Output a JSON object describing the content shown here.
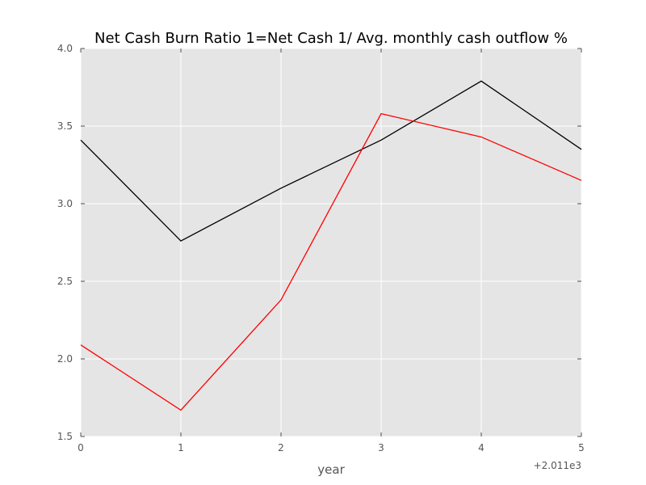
{
  "chart_data": {
    "type": "line",
    "title": "Net Cash Burn Ratio 1=Net Cash 1/ Avg. monthly cash outflow %",
    "xlabel": "year",
    "ylabel": "",
    "x_offset_label": "+2.011e3",
    "x": [
      0,
      1,
      2,
      3,
      4,
      5
    ],
    "xlim": [
      0,
      5
    ],
    "ylim": [
      1.5,
      4.0
    ],
    "x_ticks": [
      "0",
      "1",
      "2",
      "3",
      "4",
      "5"
    ],
    "y_ticks": [
      "1.5",
      "2.0",
      "2.5",
      "3.0",
      "3.5",
      "4.0"
    ],
    "grid": true,
    "series": [
      {
        "values": [
          3.41,
          2.76,
          3.1,
          3.41,
          3.79,
          3.35
        ],
        "color": "#000000"
      },
      {
        "values": [
          2.09,
          1.67,
          2.38,
          3.58,
          3.43,
          3.15
        ],
        "color": "#ff0000"
      }
    ],
    "background_color": "#e5e5e5",
    "grid_color": "#ffffff"
  }
}
